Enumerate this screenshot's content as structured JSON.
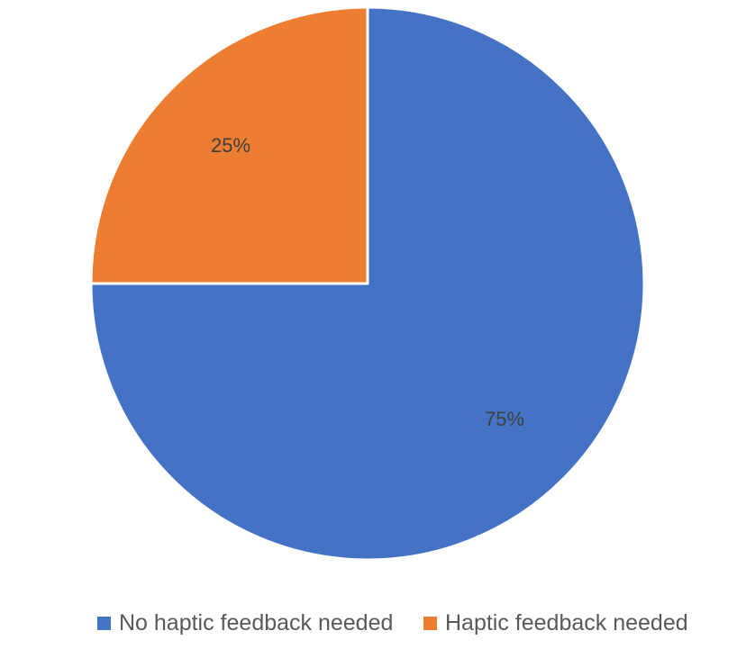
{
  "chart_data": {
    "type": "pie",
    "title": "",
    "categories": [
      "No haptic feedback needed",
      "Haptic feedback needed"
    ],
    "values": [
      75,
      25
    ],
    "labels": [
      "75%",
      "25%"
    ],
    "colors": [
      "#4472C4",
      "#ED7D31"
    ],
    "start_angle_deg": 0,
    "direction": "clockwise",
    "legend_position": "bottom"
  }
}
